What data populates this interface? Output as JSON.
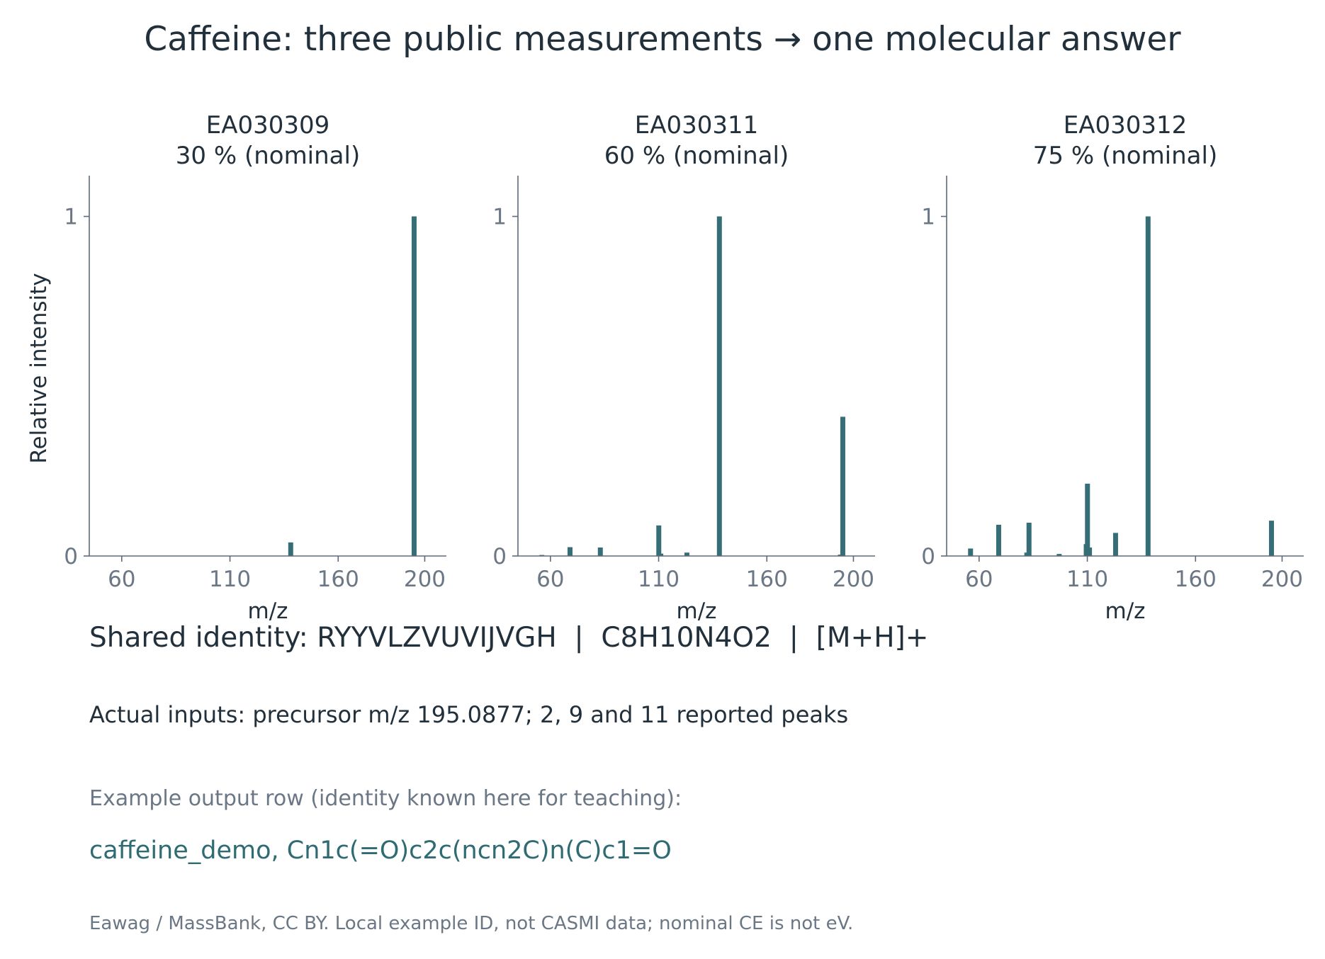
{
  "figure": {
    "title": "Caffeine: three public measurements → one molecular answer",
    "ylabel": "Relative intensity",
    "bar_color": "#356e76",
    "axis_color": "#5e6b78"
  },
  "chart_data": [
    {
      "type": "bar",
      "title": [
        "EA030309",
        "30 % (nominal)"
      ],
      "xlabel": "m/z",
      "ylabel": "Relative intensity",
      "xticks": [
        60,
        110,
        160,
        200
      ],
      "yticks": [
        0,
        1
      ],
      "xlim": [
        45,
        210
      ],
      "ylim": [
        0,
        1.12
      ],
      "x": [
        138.07,
        195.09
      ],
      "values": [
        0.04,
        1.0
      ]
    },
    {
      "type": "bar",
      "title": [
        "EA030311",
        "60 % (nominal)"
      ],
      "xlabel": "m/z",
      "xticks": [
        60,
        110,
        160,
        200
      ],
      "yticks": [
        0,
        1
      ],
      "xlim": [
        45,
        210
      ],
      "ylim": [
        0,
        1.12
      ],
      "x": [
        56.05,
        69.05,
        83.06,
        110.07,
        111.0,
        123.06,
        138.07,
        194.0,
        195.09
      ],
      "values": [
        0.003,
        0.026,
        0.025,
        0.09,
        0.007,
        0.01,
        1.0,
        0.004,
        0.41
      ]
    },
    {
      "type": "bar",
      "title": [
        "EA030312",
        "75 % (nominal)"
      ],
      "xlabel": "m/z",
      "xticks": [
        60,
        110,
        160,
        200
      ],
      "yticks": [
        0,
        1
      ],
      "xlim": [
        45,
        210
      ],
      "ylim": [
        0,
        1.12
      ],
      "x": [
        56.05,
        69.05,
        82.05,
        83.06,
        97.0,
        109.5,
        110.07,
        111.0,
        123.06,
        138.07,
        195.09
      ],
      "values": [
        0.022,
        0.092,
        0.01,
        0.098,
        0.006,
        0.035,
        0.213,
        0.025,
        0.068,
        1.0,
        0.104
      ]
    }
  ],
  "captions": {
    "shared_identity": "Shared identity: RYYVLZVUVIJVGH  |  C8H10N4O2  |  [M+H]+",
    "actual_inputs": "Actual inputs: precursor m/z 195.0877; 2, 9 and 11 reported peaks",
    "example_label": "Example output row (identity known here for teaching):",
    "example_row": "caffeine_demo, Cn1c(=O)c2c(ncn2C)n(C)c1=O",
    "footnote": "Eawag / MassBank, CC BY. Local example ID, not CASMI data; nominal CE is not eV."
  }
}
